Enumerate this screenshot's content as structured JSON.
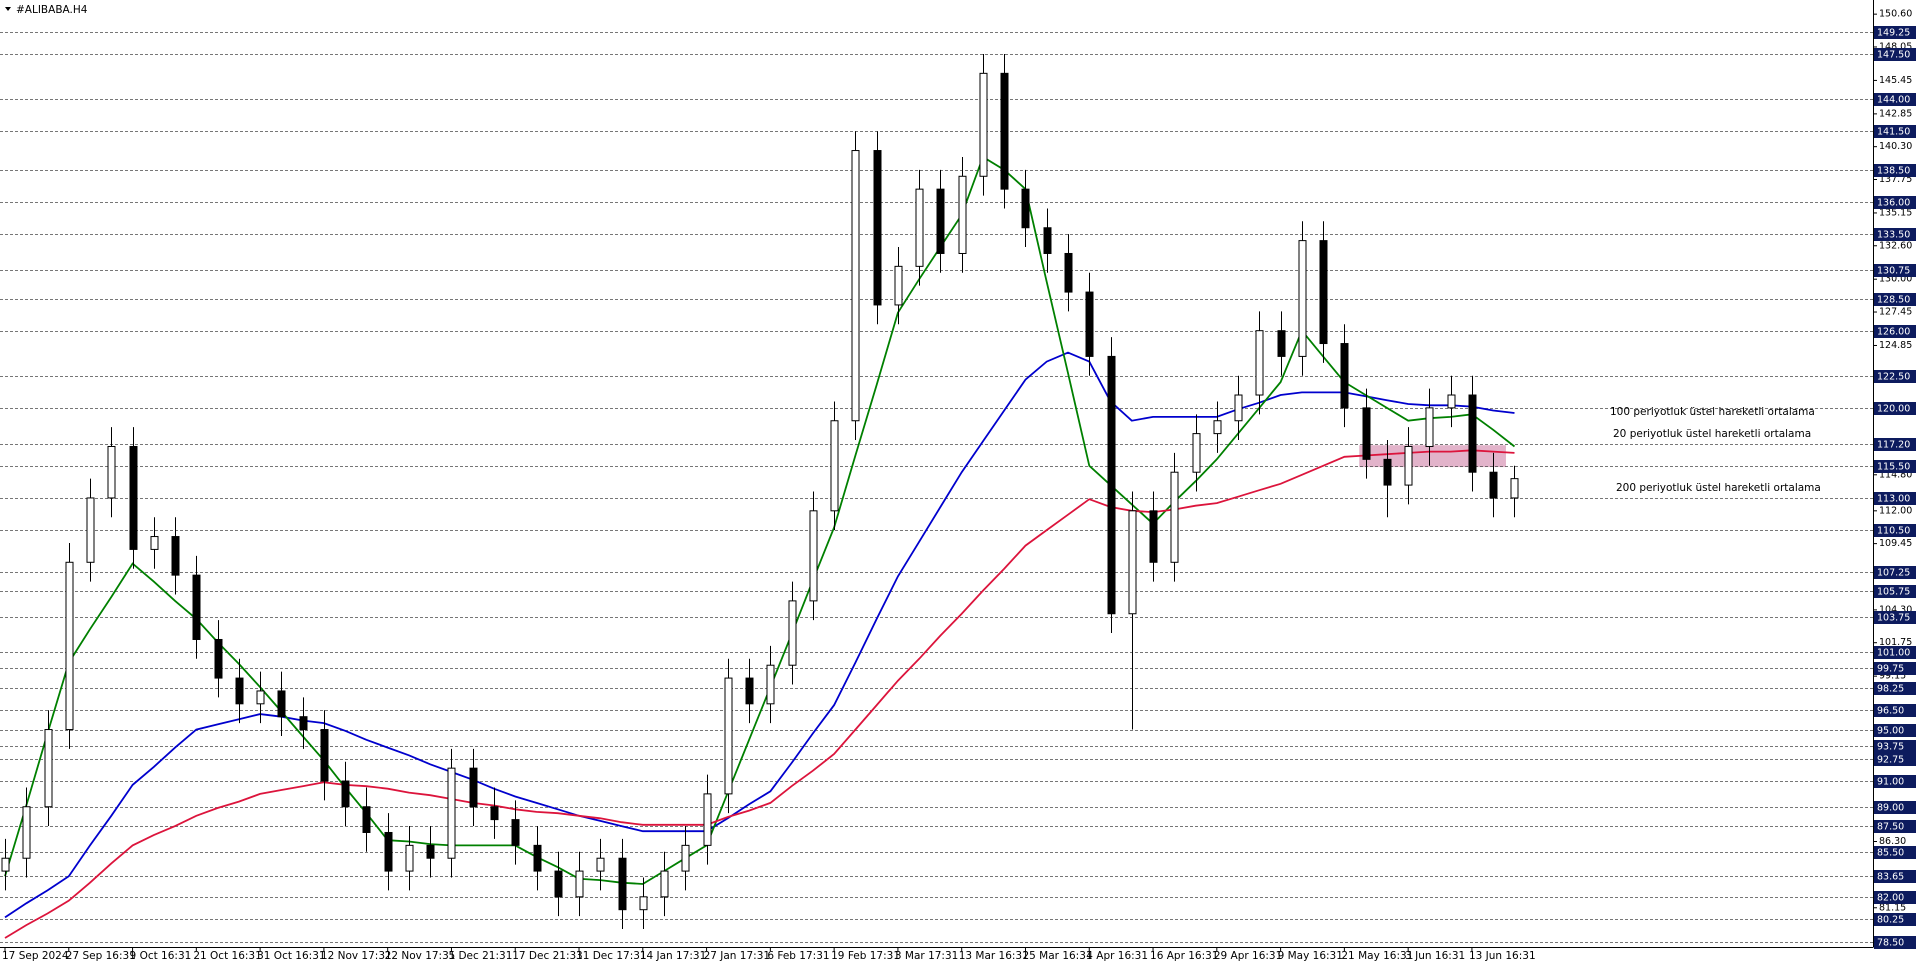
{
  "chart_data": {
    "type": "candlestick",
    "title": "#ALIBABA.H4",
    "categories": [
      "17 Sep 2024",
      null,
      null,
      "27 Sep 16:31",
      null,
      null,
      "9 Oct 16:31",
      null,
      null,
      "21 Oct 16:31",
      null,
      null,
      "31 Oct 16:31",
      null,
      null,
      "12 Nov 17:31",
      null,
      null,
      "22 Nov 17:31",
      null,
      null,
      "5 Dec 21:31",
      null,
      null,
      "17 Dec 21:31",
      null,
      null,
      "31 Dec 17:31",
      null,
      null,
      "14 Jan 17:31",
      null,
      null,
      "27 Jan 17:31",
      null,
      null,
      "6 Feb 17:31",
      null,
      null,
      "19 Feb 17:31",
      null,
      null,
      "3 Mar 17:31",
      null,
      null,
      "13 Mar 16:31",
      null,
      null,
      "25 Mar 16:31",
      null,
      null,
      "4 Apr 16:31",
      null,
      null,
      "16 Apr 16:31",
      null,
      null,
      "29 Apr 16:31",
      null,
      null,
      "9 May 16:31",
      null,
      null,
      "21 May 16:31",
      null,
      null,
      "3 Jun 16:31",
      null,
      null,
      "13 Jun 16:31",
      null,
      null
    ],
    "open": [
      84,
      85,
      89,
      95,
      108,
      113,
      117,
      109,
      110,
      107,
      102,
      99,
      97,
      98,
      96,
      95,
      91,
      89,
      87,
      84,
      86,
      85,
      92,
      89,
      88,
      86,
      84,
      82,
      84,
      85,
      81,
      82,
      84,
      86,
      90,
      99,
      97,
      100,
      105,
      112,
      119,
      140,
      128,
      131,
      137,
      132,
      138,
      146,
      137,
      134,
      132,
      129,
      124,
      104,
      112,
      108,
      115,
      118,
      119,
      121,
      126,
      124,
      133,
      125,
      120,
      116,
      114,
      117,
      120,
      121,
      115,
      113
    ],
    "high": [
      86.5,
      90.5,
      96.5,
      109.5,
      114.5,
      118.5,
      118.5,
      111.5,
      111.5,
      108.5,
      103.5,
      100.5,
      99.5,
      99.5,
      97.5,
      96.5,
      92.5,
      90.5,
      88.5,
      87.5,
      87.5,
      93.5,
      93.5,
      90.5,
      89.5,
      87.5,
      85.5,
      85.5,
      86.5,
      86.5,
      83.5,
      85.5,
      87.5,
      91.5,
      100.5,
      100.5,
      101.5,
      106.5,
      113.5,
      120.5,
      141.5,
      141.5,
      132.5,
      138.5,
      138.5,
      139.5,
      147.5,
      147.5,
      138.5,
      135.5,
      133.5,
      130.5,
      125.5,
      113.5,
      113.5,
      116.5,
      119.5,
      120.5,
      122.5,
      127.5,
      127.5,
      134.5,
      134.5,
      126.5,
      121.5,
      117.5,
      118.5,
      121.5,
      122.5,
      122.5,
      116.5,
      115.5
    ],
    "low": [
      82.5,
      83.5,
      87.5,
      93.5,
      106.5,
      111.5,
      107.5,
      107.5,
      105.5,
      100.5,
      97.5,
      95.5,
      95.5,
      94.5,
      93.5,
      89.5,
      87.5,
      85.5,
      82.5,
      82.5,
      83.5,
      83.5,
      87.5,
      86.5,
      84.5,
      82.5,
      80.5,
      80.5,
      82.5,
      79.5,
      79.5,
      80.5,
      82.5,
      84.5,
      88.5,
      95.5,
      95.5,
      98.5,
      103.5,
      110.5,
      117.5,
      126.5,
      126.5,
      129.5,
      130.5,
      130.5,
      136.5,
      135.5,
      132.5,
      130.5,
      127.5,
      122.5,
      102.5,
      95,
      106.5,
      106.5,
      113.5,
      116.5,
      117.5,
      119.5,
      122.5,
      122.5,
      123.5,
      118.5,
      114.5,
      111.5,
      112.5,
      115.5,
      118.5,
      113.5,
      111.5,
      111.5
    ],
    "close": [
      85,
      89,
      95,
      108,
      113,
      117,
      109,
      110,
      107,
      102,
      99,
      97,
      98,
      96,
      95,
      91,
      89,
      87,
      84,
      86,
      85,
      92,
      89,
      88,
      86,
      84,
      82,
      84,
      85,
      81,
      82,
      84,
      86,
      90,
      99,
      97,
      100,
      105,
      112,
      119,
      140,
      128,
      131,
      137,
      132,
      138,
      146,
      137,
      134,
      132,
      129,
      124,
      104,
      112,
      108,
      115,
      118,
      119,
      121,
      126,
      124,
      133,
      125,
      120,
      116,
      114,
      117,
      120,
      121,
      115,
      113,
      114.5
    ],
    "color": "#000000",
    "series": [
      {
        "name": "100 periyotluk üstel hareketli ortalama",
        "color": "#0000cd",
        "values": [
          80.4,
          81.5,
          82.5,
          83.6,
          86,
          88.3,
          90.7,
          92.1,
          93.6,
          95,
          95.4,
          95.8,
          96.2,
          96,
          95.7,
          95.5,
          94.9,
          94.2,
          93.6,
          93,
          92.3,
          91.7,
          91.1,
          90.4,
          89.8,
          89.3,
          88.8,
          88.3,
          87.9,
          87.5,
          87.1,
          87.1,
          87.1,
          87.1,
          88.1,
          89.2,
          90.2,
          92.4,
          94.7,
          96.9,
          100.2,
          103.6,
          106.9,
          109.6,
          112.3,
          115,
          117.4,
          119.8,
          122.2,
          123.6,
          124.3,
          123.6,
          120.5,
          119,
          119.3,
          119.3,
          119.3,
          119.3,
          119.9,
          120.4,
          121,
          121.2,
          121.2,
          121.2,
          120.9,
          120.6,
          120.3,
          120.2,
          120.2,
          120.1,
          119.8,
          119.6
        ]
      },
      {
        "name": "20 periyotluk üstel hareketli ortalama",
        "color": "#008000",
        "values": [
          83.6,
          89.1,
          94.7,
          100.2,
          102.8,
          105.3,
          107.9,
          106.5,
          105,
          103.6,
          101.8,
          100.1,
          98.3,
          96.4,
          94.5,
          92.6,
          90.5,
          88.5,
          86.4,
          86.3,
          86.1,
          86,
          86,
          86,
          86,
          85.1,
          84.3,
          83.4,
          83.3,
          83.1,
          83,
          84,
          85,
          86,
          90.1,
          94.2,
          98.3,
          102.4,
          106.6,
          110.7,
          116.3,
          121.8,
          127.4,
          130,
          132.5,
          135,
          139.5,
          138.5,
          137,
          129.8,
          122.7,
          115.5,
          114,
          112.5,
          111,
          112.7,
          114.3,
          116,
          118,
          120,
          122,
          126,
          124,
          122,
          121,
          120,
          119,
          119.2,
          119.3,
          119.5,
          118.3,
          117
        ]
      },
      {
        "name": "200 periyotluk üstel hareketli ortalama",
        "color": "#dc143c",
        "values": [
          78.8,
          79.8,
          80.7,
          81.7,
          83.1,
          84.6,
          86,
          86.8,
          87.5,
          88.3,
          88.9,
          89.4,
          90,
          90.3,
          90.6,
          90.9,
          90.7,
          90.6,
          90.4,
          90.1,
          89.9,
          89.6,
          89.3,
          89.1,
          88.8,
          88.6,
          88.5,
          88.3,
          88.1,
          87.8,
          87.6,
          87.6,
          87.6,
          87.6,
          88.2,
          88.7,
          89.3,
          90.6,
          91.8,
          93.1,
          95,
          96.9,
          98.8,
          100.5,
          102.3,
          104,
          105.8,
          107.5,
          109.3,
          110.5,
          111.7,
          112.9,
          112.3,
          112,
          111.9,
          112.1,
          112.4,
          112.6,
          113.1,
          113.6,
          114.1,
          114.8,
          115.5,
          116.2,
          116.3,
          116.4,
          116.5,
          116.6,
          116.6,
          116.7,
          116.6,
          116.5
        ]
      }
    ],
    "ylim": [
      78.1,
      151.7
    ],
    "yticks": [
      {
        "value": 150.6,
        "label": "150.60"
      },
      {
        "value": 148.05,
        "label": "148.05"
      },
      {
        "value": 145.45,
        "label": "145.45"
      },
      {
        "value": 142.85,
        "label": "142.85"
      },
      {
        "value": 140.3,
        "label": "140.30"
      },
      {
        "value": 137.75,
        "label": "137.75"
      },
      {
        "value": 135.15,
        "label": "135.15"
      },
      {
        "value": 132.6,
        "label": "132.60"
      },
      {
        "value": 130,
        "label": "130.00"
      },
      {
        "value": 127.45,
        "label": "127.45"
      },
      {
        "value": 124.85,
        "label": "124.85"
      },
      {
        "value": 114.8,
        "label": "114.80"
      },
      {
        "value": 112,
        "label": "112.00"
      },
      {
        "value": 109.45,
        "label": "109.45"
      },
      {
        "value": 104.3,
        "label": "104.30"
      },
      {
        "value": 101.75,
        "label": "101.75"
      },
      {
        "value": 99.15,
        "label": "99.15"
      },
      {
        "value": 86.3,
        "label": "86.30"
      },
      {
        "value": 81.15,
        "label": "81.15"
      }
    ],
    "levels": [
      {
        "value": 149.25,
        "label": "149.25"
      },
      {
        "value": 147.5,
        "label": "147.50"
      },
      {
        "value": 144,
        "label": "144.00"
      },
      {
        "value": 141.5,
        "label": "141.50"
      },
      {
        "value": 138.5,
        "label": "138.50"
      },
      {
        "value": 136,
        "label": "136.00"
      },
      {
        "value": 133.5,
        "label": "133.50"
      },
      {
        "value": 130.75,
        "label": "130.75"
      },
      {
        "value": 128.5,
        "label": "128.50"
      },
      {
        "value": 126,
        "label": "126.00"
      },
      {
        "value": 122.5,
        "label": "122.50"
      },
      {
        "value": 120,
        "label": "120.00"
      },
      {
        "value": 117.2,
        "label": "117.20"
      },
      {
        "value": 115.5,
        "label": "115.50"
      },
      {
        "value": 113,
        "label": "113.00"
      },
      {
        "value": 110.5,
        "label": "110.50"
      },
      {
        "value": 107.25,
        "label": "107.25"
      },
      {
        "value": 105.75,
        "label": "105.75"
      },
      {
        "value": 103.75,
        "label": "103.75"
      },
      {
        "value": 101,
        "label": "101.00"
      },
      {
        "value": 99.75,
        "label": "99.75"
      },
      {
        "value": 98.25,
        "label": "98.25"
      },
      {
        "value": 96.5,
        "label": "96.50"
      },
      {
        "value": 95,
        "label": "95.00"
      },
      {
        "value": 93.75,
        "label": "93.75"
      },
      {
        "value": 92.75,
        "label": "92.75"
      },
      {
        "value": 91,
        "label": "91.00"
      },
      {
        "value": 89,
        "label": "89.00"
      },
      {
        "value": 87.5,
        "label": "87.50"
      },
      {
        "value": 85.5,
        "label": "85.50"
      },
      {
        "value": 83.65,
        "label": "83.65"
      },
      {
        "value": 82,
        "label": "82.00"
      },
      {
        "value": 80.25,
        "label": "80.25"
      },
      {
        "value": 78.5,
        "label": "78.50"
      }
    ],
    "level_color": "#0d1b5e",
    "zone": {
      "x": [
        63.7,
        70.6
      ],
      "y": [
        115.4,
        117.1
      ],
      "color": "#d89ab8"
    },
    "grid": false
  }
}
